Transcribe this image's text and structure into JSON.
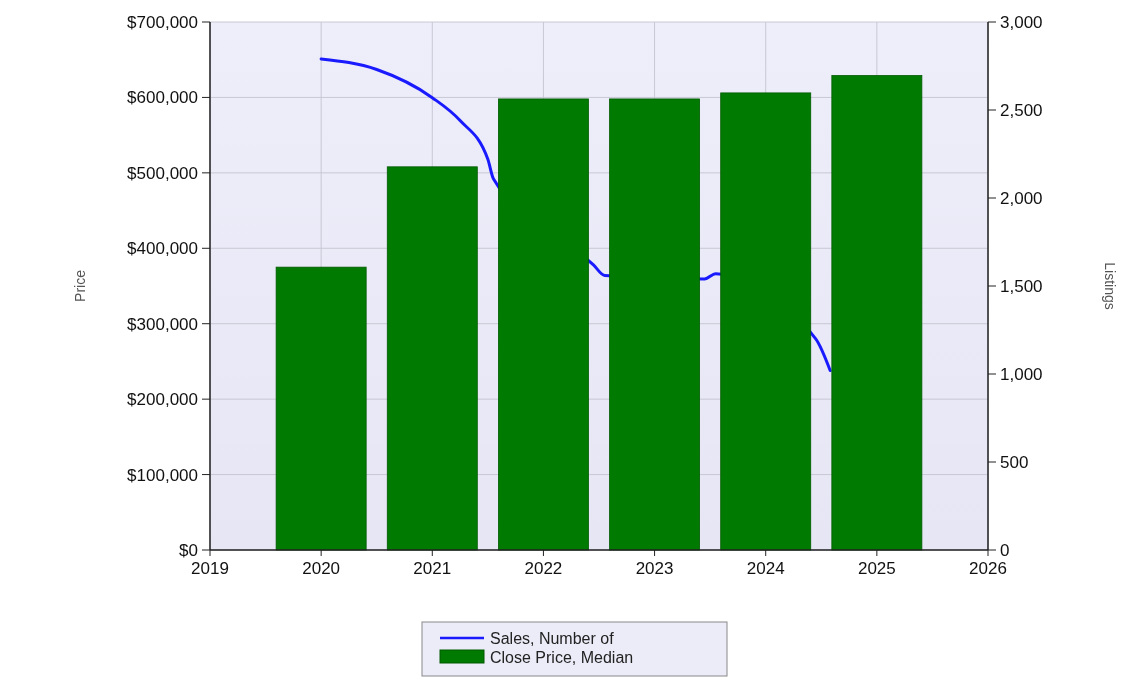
{
  "chart_data": {
    "type": "bar",
    "ylabel": "Price",
    "y2label": "Listings",
    "x": [
      2020,
      2021,
      2022,
      2023,
      2024,
      2025
    ],
    "xlim": [
      2019,
      2026
    ],
    "xticks": [
      2019,
      2020,
      2021,
      2022,
      2023,
      2024,
      2025,
      2026
    ],
    "ylim": [
      0,
      700000
    ],
    "yticks": [
      {
        "value": 0,
        "label": "$0"
      },
      {
        "value": 100000,
        "label": "$100,000"
      },
      {
        "value": 200000,
        "label": "$200,000"
      },
      {
        "value": 300000,
        "label": "$300,000"
      },
      {
        "value": 400000,
        "label": "$400,000"
      },
      {
        "value": 500000,
        "label": "$500,000"
      },
      {
        "value": 600000,
        "label": "$600,000"
      },
      {
        "value": 700000,
        "label": "$700,000"
      }
    ],
    "y2lim": [
      0,
      3000
    ],
    "y2ticks": [
      0,
      500,
      {
        "value": 1000,
        "label": "1,000"
      },
      {
        "value": 1500,
        "label": "1,500"
      },
      {
        "value": 2000,
        "label": "2,000"
      },
      {
        "value": 2500,
        "label": "2,500"
      },
      {
        "value": 3000,
        "label": "3,000"
      }
    ],
    "series": [
      {
        "name": "Sales, Number of",
        "type": "line",
        "axis": "y2",
        "color": "#1a1aff",
        "x": [
          2020,
          2020.5,
          2021,
          2021.25,
          2021.5,
          2021.55,
          2022.45,
          2022.55,
          2023.45,
          2023.55,
          2024.45,
          2024.58
        ],
        "values": [
          2790,
          2730,
          2570,
          2440,
          2220,
          2110,
          1620,
          1560,
          1540,
          1570,
          1200,
          1020
        ]
      },
      {
        "name": "Close Price, Median",
        "color": "#007a00",
        "values": [
          375000,
          508000,
          598000,
          598000,
          606000,
          629000
        ]
      }
    ],
    "grid": true,
    "legend": "bottom"
  }
}
